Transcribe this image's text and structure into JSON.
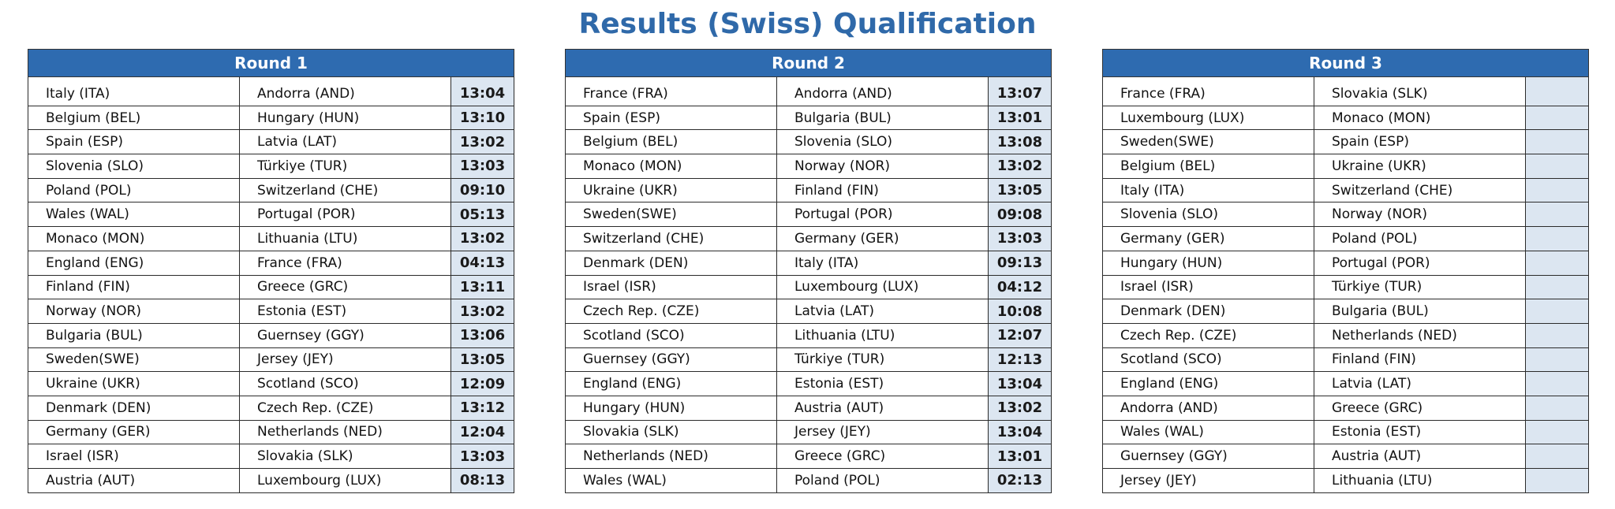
{
  "title": "Results (Swiss) Qualification",
  "colors": {
    "title": "#2f69a9",
    "header_bg": "#2e6bb0",
    "header_text": "#ffffff",
    "score_bg": "#dce6f1"
  },
  "rounds": [
    {
      "name": "Round 1",
      "matches": [
        {
          "home": "Italy (ITA)",
          "away": "Andorra (AND)",
          "score": "13:04"
        },
        {
          "home": "Belgium (BEL)",
          "away": "Hungary (HUN)",
          "score": "13:10"
        },
        {
          "home": "Spain (ESP)",
          "away": "Latvia (LAT)",
          "score": "13:02"
        },
        {
          "home": "Slovenia (SLO)",
          "away": "Türkiye (TUR)",
          "score": "13:03"
        },
        {
          "home": "Poland (POL)",
          "away": "Switzerland (CHE)",
          "score": "09:10"
        },
        {
          "home": "Wales (WAL)",
          "away": "Portugal (POR)",
          "score": "05:13"
        },
        {
          "home": "Monaco (MON)",
          "away": "Lithuania (LTU)",
          "score": "13:02"
        },
        {
          "home": "England (ENG)",
          "away": "France (FRA)",
          "score": "04:13"
        },
        {
          "home": "Finland (FIN)",
          "away": "Greece (GRC)",
          "score": "13:11"
        },
        {
          "home": "Norway (NOR)",
          "away": "Estonia (EST)",
          "score": "13:02"
        },
        {
          "home": "Bulgaria (BUL)",
          "away": "Guernsey (GGY)",
          "score": "13:06"
        },
        {
          "home": "Sweden(SWE)",
          "away": "Jersey (JEY)",
          "score": "13:05"
        },
        {
          "home": "Ukraine (UKR)",
          "away": "Scotland (SCO)",
          "score": "12:09"
        },
        {
          "home": "Denmark (DEN)",
          "away": "Czech Rep. (CZE)",
          "score": "13:12"
        },
        {
          "home": "Germany (GER)",
          "away": "Netherlands (NED)",
          "score": "12:04"
        },
        {
          "home": "Israel (ISR)",
          "away": "Slovakia (SLK)",
          "score": "13:03"
        },
        {
          "home": "Austria (AUT)",
          "away": "Luxembourg (LUX)",
          "score": "08:13"
        }
      ]
    },
    {
      "name": "Round 2",
      "matches": [
        {
          "home": "France (FRA)",
          "away": "Andorra (AND)",
          "score": "13:07"
        },
        {
          "home": "Spain (ESP)",
          "away": "Bulgaria (BUL)",
          "score": "13:01"
        },
        {
          "home": "Belgium (BEL)",
          "away": "Slovenia (SLO)",
          "score": "13:08"
        },
        {
          "home": "Monaco (MON)",
          "away": "Norway (NOR)",
          "score": "13:02"
        },
        {
          "home": "Ukraine (UKR)",
          "away": "Finland (FIN)",
          "score": "13:05"
        },
        {
          "home": "Sweden(SWE)",
          "away": "Portugal (POR)",
          "score": "09:08"
        },
        {
          "home": "Switzerland (CHE)",
          "away": "Germany (GER)",
          "score": "13:03"
        },
        {
          "home": "Denmark (DEN)",
          "away": "Italy (ITA)",
          "score": "09:13"
        },
        {
          "home": "Israel (ISR)",
          "away": "Luxembourg (LUX)",
          "score": "04:12"
        },
        {
          "home": "Czech Rep. (CZE)",
          "away": "Latvia (LAT)",
          "score": "10:08"
        },
        {
          "home": "Scotland (SCO)",
          "away": "Lithuania (LTU)",
          "score": "12:07"
        },
        {
          "home": "Guernsey (GGY)",
          "away": "Türkiye (TUR)",
          "score": "12:13"
        },
        {
          "home": "England (ENG)",
          "away": "Estonia (EST)",
          "score": "13:04"
        },
        {
          "home": "Hungary (HUN)",
          "away": "Austria (AUT)",
          "score": "13:02"
        },
        {
          "home": "Slovakia (SLK)",
          "away": "Jersey (JEY)",
          "score": "13:04"
        },
        {
          "home": "Netherlands (NED)",
          "away": "Greece (GRC)",
          "score": "13:01"
        },
        {
          "home": "Wales (WAL)",
          "away": "Poland (POL)",
          "score": "02:13"
        }
      ]
    },
    {
      "name": "Round 3",
      "matches": [
        {
          "home": "France (FRA)",
          "away": "Slovakia (SLK)",
          "score": ""
        },
        {
          "home": "Luxembourg (LUX)",
          "away": "Monaco (MON)",
          "score": ""
        },
        {
          "home": "Sweden(SWE)",
          "away": "Spain (ESP)",
          "score": ""
        },
        {
          "home": "Belgium (BEL)",
          "away": "Ukraine (UKR)",
          "score": ""
        },
        {
          "home": "Italy (ITA)",
          "away": "Switzerland (CHE)",
          "score": ""
        },
        {
          "home": "Slovenia (SLO)",
          "away": "Norway (NOR)",
          "score": ""
        },
        {
          "home": "Germany (GER)",
          "away": "Poland (POL)",
          "score": ""
        },
        {
          "home": "Hungary (HUN)",
          "away": "Portugal (POR)",
          "score": ""
        },
        {
          "home": "Israel (ISR)",
          "away": "Türkiye (TUR)",
          "score": ""
        },
        {
          "home": "Denmark (DEN)",
          "away": "Bulgaria (BUL)",
          "score": ""
        },
        {
          "home": "Czech Rep. (CZE)",
          "away": "Netherlands (NED)",
          "score": ""
        },
        {
          "home": "Scotland (SCO)",
          "away": "Finland (FIN)",
          "score": ""
        },
        {
          "home": "England (ENG)",
          "away": "Latvia (LAT)",
          "score": ""
        },
        {
          "home": "Andorra (AND)",
          "away": "Greece (GRC)",
          "score": ""
        },
        {
          "home": "Wales (WAL)",
          "away": "Estonia (EST)",
          "score": ""
        },
        {
          "home": "Guernsey (GGY)",
          "away": "Austria (AUT)",
          "score": ""
        },
        {
          "home": "Jersey (JEY)",
          "away": "Lithuania (LTU)",
          "score": ""
        }
      ]
    }
  ]
}
